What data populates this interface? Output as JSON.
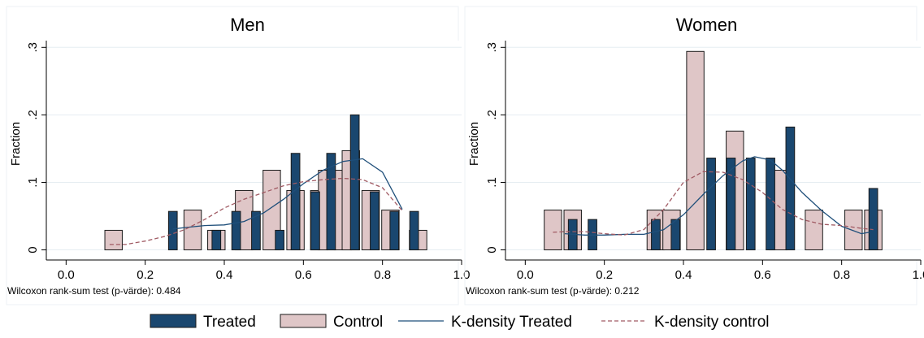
{
  "figure": {
    "legend": [
      {
        "label": "Treated",
        "kind": "bar-treated"
      },
      {
        "label": "Control",
        "kind": "bar-control"
      },
      {
        "label": "K-density Treated",
        "kind": "line-solid"
      },
      {
        "label": "K-density control",
        "kind": "line-dashed"
      }
    ],
    "colors": {
      "treated_fill": "#1a476f",
      "control_fill": "#dfc6c7",
      "bar_outline": "#1a1a1a",
      "density_treated": "#1f4f7a",
      "density_control": "#a05a63",
      "grid": "#e6edf2",
      "background": "#ffffff"
    }
  },
  "chart_data": [
    {
      "type": "bar",
      "title": "Men",
      "ylabel": "Fraction",
      "xlim": [
        -0.05,
        1.0
      ],
      "ylim": [
        -0.015,
        0.31
      ],
      "xticks": [
        0.0,
        0.2,
        0.4,
        0.6,
        0.8,
        1.0
      ],
      "xtick_labels": [
        "0.0",
        "0.2",
        "0.4",
        "0.6",
        "0.8",
        "1.0"
      ],
      "yticks": [
        0,
        0.1,
        0.2,
        0.3
      ],
      "ytick_labels": [
        "0",
        ".1",
        ".2",
        ".3"
      ],
      "grid": true,
      "note": "Wilcoxon rank-sum test (p-värde): 0.484",
      "series": [
        {
          "name": "Treated",
          "kind": "bar",
          "width": 0.022,
          "x": [
            0.27,
            0.38,
            0.43,
            0.48,
            0.54,
            0.58,
            0.63,
            0.67,
            0.73,
            0.78,
            0.83,
            0.88
          ],
          "y": [
            0.057,
            0.029,
            0.057,
            0.057,
            0.029,
            0.143,
            0.086,
            0.143,
            0.2,
            0.086,
            0.057,
            0.057
          ]
        },
        {
          "name": "Control",
          "kind": "bar",
          "width": 0.044,
          "x": [
            0.12,
            0.32,
            0.38,
            0.45,
            0.52,
            0.58,
            0.64,
            0.66,
            0.7,
            0.72,
            0.77,
            0.82,
            0.89
          ],
          "y": [
            0.029,
            0.059,
            0.029,
            0.088,
            0.118,
            0.088,
            0.088,
            0.118,
            0.118,
            0.147,
            0.088,
            0.059,
            0.029
          ]
        },
        {
          "name": "K-density Treated",
          "kind": "line",
          "x": [
            0.27,
            0.3,
            0.35,
            0.4,
            0.45,
            0.5,
            0.55,
            0.6,
            0.65,
            0.7,
            0.75,
            0.8,
            0.85
          ],
          "y": [
            0.031,
            0.033,
            0.036,
            0.037,
            0.042,
            0.055,
            0.075,
            0.098,
            0.118,
            0.131,
            0.135,
            0.115,
            0.06
          ]
        },
        {
          "name": "K-density control",
          "kind": "line",
          "x": [
            0.11,
            0.15,
            0.2,
            0.25,
            0.3,
            0.35,
            0.4,
            0.45,
            0.5,
            0.55,
            0.6,
            0.65,
            0.7,
            0.75,
            0.8,
            0.85
          ],
          "y": [
            0.008,
            0.008,
            0.013,
            0.02,
            0.03,
            0.045,
            0.062,
            0.075,
            0.085,
            0.095,
            0.101,
            0.104,
            0.106,
            0.104,
            0.092,
            0.058
          ]
        }
      ]
    },
    {
      "type": "bar",
      "title": "Women",
      "ylabel": "Fraction",
      "xlim": [
        -0.05,
        1.0
      ],
      "ylim": [
        -0.015,
        0.31
      ],
      "xticks": [
        0.0,
        0.2,
        0.4,
        0.6,
        0.8,
        1.0
      ],
      "xtick_labels": [
        "0.0",
        "0.2",
        "0.4",
        "0.6",
        "0.8",
        "1.0"
      ],
      "yticks": [
        0,
        0.1,
        0.2,
        0.3
      ],
      "ytick_labels": [
        "0",
        ".1",
        ".2",
        ".3"
      ],
      "grid": true,
      "note": "Wilcoxon rank-sum test (p-värde): 0.212",
      "series": [
        {
          "name": "Treated",
          "kind": "bar",
          "width": 0.022,
          "x": [
            0.12,
            0.17,
            0.33,
            0.38,
            0.47,
            0.52,
            0.57,
            0.62,
            0.67,
            0.88
          ],
          "y": [
            0.045,
            0.045,
            0.045,
            0.045,
            0.136,
            0.136,
            0.136,
            0.136,
            0.182,
            0.091
          ]
        },
        {
          "name": "Control",
          "kind": "bar",
          "width": 0.044,
          "x": [
            0.07,
            0.12,
            0.33,
            0.37,
            0.43,
            0.53,
            0.64,
            0.73,
            0.83,
            0.88
          ],
          "y": [
            0.059,
            0.059,
            0.059,
            0.059,
            0.294,
            0.176,
            0.118,
            0.059,
            0.059,
            0.059
          ]
        },
        {
          "name": "K-density Treated",
          "kind": "line",
          "x": [
            0.1,
            0.15,
            0.2,
            0.25,
            0.3,
            0.35,
            0.4,
            0.45,
            0.5,
            0.55,
            0.58,
            0.62,
            0.65,
            0.7,
            0.75,
            0.8,
            0.85,
            0.87
          ],
          "y": [
            0.024,
            0.022,
            0.022,
            0.023,
            0.023,
            0.03,
            0.052,
            0.082,
            0.11,
            0.132,
            0.138,
            0.133,
            0.118,
            0.085,
            0.058,
            0.035,
            0.024,
            0.026
          ]
        },
        {
          "name": "K-density control",
          "kind": "line",
          "x": [
            0.07,
            0.1,
            0.15,
            0.2,
            0.25,
            0.3,
            0.35,
            0.4,
            0.45,
            0.5,
            0.55,
            0.6,
            0.65,
            0.7,
            0.75,
            0.8,
            0.85,
            0.88
          ],
          "y": [
            0.026,
            0.027,
            0.027,
            0.024,
            0.022,
            0.03,
            0.06,
            0.1,
            0.116,
            0.115,
            0.104,
            0.085,
            0.06,
            0.045,
            0.038,
            0.036,
            0.032,
            0.03
          ]
        }
      ]
    }
  ]
}
